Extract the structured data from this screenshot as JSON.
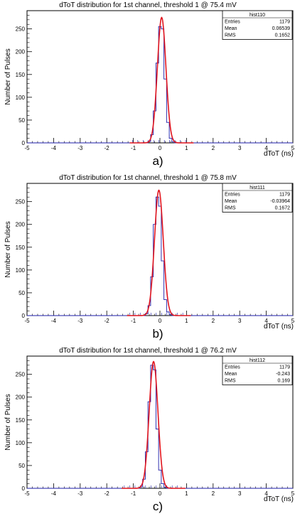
{
  "chart_data": [
    {
      "type": "histogram",
      "title": "dToT distribution for 1st channel, threshold 1 @ 75.4 mV",
      "xlabel": "dToT (ns)",
      "ylabel": "Number of Pulses",
      "xlim": [
        -5,
        5
      ],
      "ylim": [
        0,
        290
      ],
      "xticks": [
        "-5",
        "-4",
        "-3",
        "-2",
        "-1",
        "0",
        "1",
        "2",
        "3",
        "4",
        "5"
      ],
      "yticks": [
        "0",
        "50",
        "100",
        "150",
        "200",
        "250"
      ],
      "panel_label": "a)",
      "stats": {
        "name": "hist110",
        "rows": [
          {
            "label": "Entries",
            "value": "1179"
          },
          {
            "label": "Mean",
            "value": "0.06539"
          },
          {
            "label": "RMS",
            "value": "0.1652"
          }
        ]
      },
      "bins": {
        "x": [
          -0.4,
          -0.3,
          -0.2,
          -0.1,
          0.0,
          0.1,
          0.2,
          0.3,
          0.4,
          0.5
        ],
        "counts": [
          3,
          18,
          70,
          175,
          255,
          250,
          140,
          45,
          10,
          2
        ]
      },
      "fit": {
        "type": "gaus",
        "mean": 0.065,
        "sigma": 0.16,
        "amplitude": 275
      }
    },
    {
      "type": "histogram",
      "title": "dToT distribution for 1st channel, threshold 1 @ 75.8 mV",
      "xlabel": "dToT (ns)",
      "ylabel": "Number of Pulses",
      "xlim": [
        -5,
        5
      ],
      "ylim": [
        0,
        290
      ],
      "xticks": [
        "-5",
        "-4",
        "-3",
        "-2",
        "-1",
        "0",
        "1",
        "2",
        "3",
        "4",
        "5"
      ],
      "yticks": [
        "0",
        "50",
        "100",
        "150",
        "200",
        "250"
      ],
      "panel_label": "b)",
      "stats": {
        "name": "hist111",
        "rows": [
          {
            "label": "Entries",
            "value": "1179"
          },
          {
            "label": "Mean",
            "value": "-0.03964"
          },
          {
            "label": "RMS",
            "value": "0.1672"
          }
        ]
      },
      "bins": {
        "x": [
          -0.5,
          -0.4,
          -0.3,
          -0.2,
          -0.1,
          0.0,
          0.1,
          0.2,
          0.3,
          0.4
        ],
        "counts": [
          4,
          22,
          85,
          200,
          260,
          240,
          120,
          35,
          8,
          2
        ]
      },
      "fit": {
        "type": "gaus",
        "mean": -0.04,
        "sigma": 0.165,
        "amplitude": 275
      }
    },
    {
      "type": "histogram",
      "title": "dToT distribution for 1st channel, threshold 1 @ 76.2 mV",
      "xlabel": "dToT (ns)",
      "ylabel": "Number of Pulses",
      "xlim": [
        -5,
        5
      ],
      "ylim": [
        0,
        290
      ],
      "xticks": [
        "-5",
        "-4",
        "-3",
        "-2",
        "-1",
        "0",
        "1",
        "2",
        "3",
        "4",
        "5"
      ],
      "yticks": [
        "0",
        "50",
        "100",
        "150",
        "200",
        "250"
      ],
      "panel_label": "c)",
      "stats": {
        "name": "hist112",
        "rows": [
          {
            "label": "Entries",
            "value": "1179"
          },
          {
            "label": "Mean",
            "value": "-0.243"
          },
          {
            "label": "RMS",
            "value": "0.169"
          }
        ]
      },
      "bins": {
        "x": [
          -0.7,
          -0.6,
          -0.5,
          -0.4,
          -0.3,
          -0.2,
          -0.1,
          0.0,
          0.1,
          0.2
        ],
        "counts": [
          3,
          20,
          80,
          190,
          270,
          260,
          130,
          40,
          10,
          2
        ]
      },
      "fit": {
        "type": "gaus",
        "mean": -0.24,
        "sigma": 0.165,
        "amplitude": 278
      }
    }
  ],
  "colors": {
    "histogram": "#1b1ba8",
    "fit": "#e0141e",
    "axis": "#000000"
  }
}
